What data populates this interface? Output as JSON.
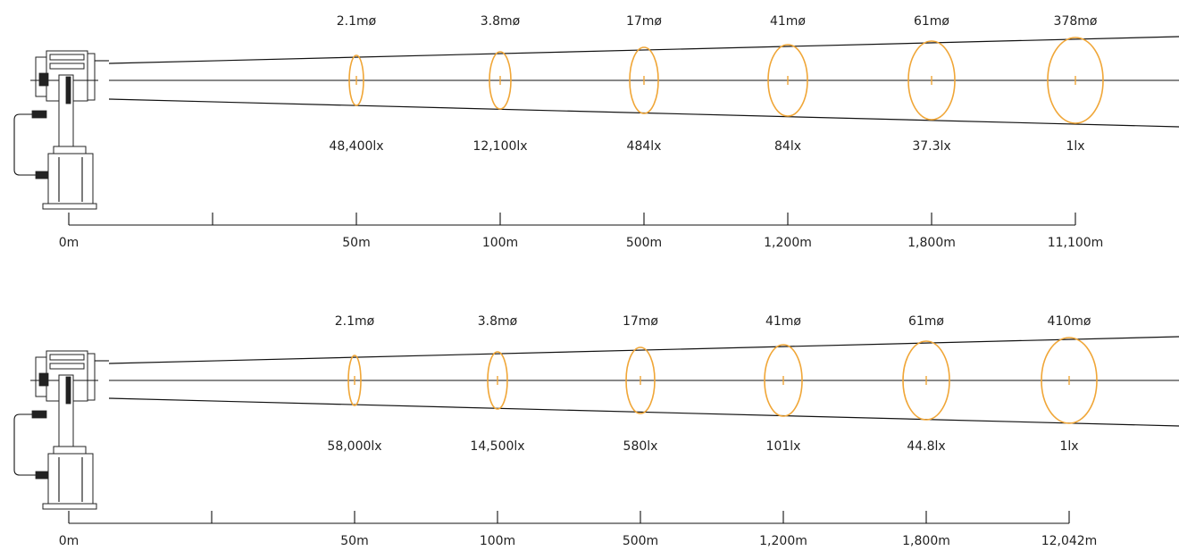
{
  "colors": {
    "spot": "#f0a637",
    "line": "#111111",
    "text": "#222222"
  },
  "panels": [
    {
      "diameters": [
        "2.1mø",
        "3.8mø",
        "17mø",
        "41mø",
        "61mø",
        "378mø"
      ],
      "illuminance": [
        "48,400lx",
        "12,100lx",
        "484lx",
        "84lx",
        "37.3lx",
        "1lx"
      ],
      "distances": [
        "0m",
        "50m",
        "100m",
        "500m",
        "1,200m",
        "1,800m",
        "11,100m"
      ]
    },
    {
      "diameters": [
        "2.1mø",
        "3.8mø",
        "17mø",
        "41mø",
        "61mø",
        "410mø"
      ],
      "illuminance": [
        "58,000lx",
        "14,500lx",
        "580lx",
        "101lx",
        "44.8lx",
        "1lx"
      ],
      "distances": [
        "0m",
        "50m",
        "100m",
        "500m",
        "1,200m",
        "1,800m",
        "12,042m"
      ]
    }
  ]
}
